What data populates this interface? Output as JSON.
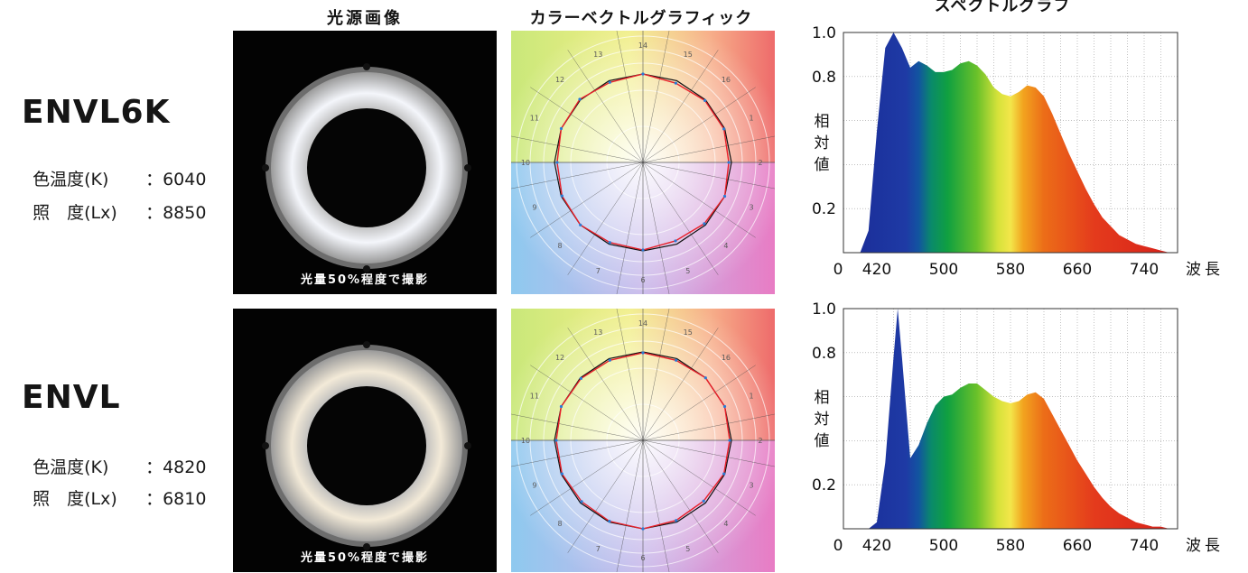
{
  "headers": {
    "col1": "光源画像",
    "col2": "カラーベクトルグラフィック",
    "col3": "スペクトルグラフ"
  },
  "products": [
    {
      "name": "ENVL6K",
      "color_temp_label": "色温度(K)",
      "color_temp_value": "：6040",
      "illuminance_label": "照　度(Lx)",
      "illuminance_value": "：8850",
      "photo_caption": "光量50%程度で撮影",
      "ring_color": "#f4f6fb"
    },
    {
      "name": "ENVL",
      "color_temp_label": "色温度(K)",
      "color_temp_value": "：4820",
      "illuminance_label": "照　度(Lx)",
      "illuminance_value": "：6810",
      "photo_caption": "光量50%程度で撮影",
      "ring_color": "#f3ead8"
    }
  ],
  "colorvector": {
    "sector_numbers": [
      "1",
      "2",
      "3",
      "4",
      "5",
      "6",
      "7",
      "8",
      "9",
      "10",
      "11",
      "12",
      "13",
      "14",
      "15",
      "16"
    ],
    "reference_color": "#111111",
    "measured_color": "#e8202a"
  },
  "chart_data": [
    {
      "type": "area",
      "x_ticks": [
        "0",
        "420",
        "500",
        "580",
        "660",
        "740"
      ],
      "x_unit_label": "波長",
      "y_ticks": [
        "1.0",
        "0.8",
        "0.2"
      ],
      "ylabel": "相対値",
      "xlim": [
        380,
        780
      ],
      "ylim": [
        0,
        1.0
      ],
      "grid": true,
      "x": [
        400,
        410,
        420,
        430,
        440,
        450,
        460,
        470,
        480,
        490,
        500,
        510,
        520,
        530,
        540,
        550,
        560,
        570,
        580,
        590,
        600,
        610,
        620,
        630,
        640,
        650,
        660,
        670,
        680,
        690,
        700,
        710,
        720,
        730,
        740,
        750,
        760,
        770,
        780
      ],
      "y": [
        0.0,
        0.1,
        0.55,
        0.93,
        1.0,
        0.93,
        0.84,
        0.87,
        0.85,
        0.82,
        0.82,
        0.83,
        0.86,
        0.87,
        0.85,
        0.81,
        0.75,
        0.72,
        0.71,
        0.73,
        0.76,
        0.75,
        0.71,
        0.63,
        0.54,
        0.45,
        0.37,
        0.29,
        0.22,
        0.16,
        0.12,
        0.08,
        0.06,
        0.04,
        0.03,
        0.02,
        0.01,
        0.0,
        0.0
      ]
    },
    {
      "type": "area",
      "x_ticks": [
        "0",
        "420",
        "500",
        "580",
        "660",
        "740"
      ],
      "x_unit_label": "波長",
      "y_ticks": [
        "1.0",
        "0.8",
        "0.2"
      ],
      "ylabel": "相対値",
      "xlim": [
        380,
        780
      ],
      "ylim": [
        0,
        1.0
      ],
      "grid": true,
      "x": [
        400,
        410,
        420,
        430,
        440,
        445,
        450,
        460,
        470,
        480,
        490,
        500,
        510,
        520,
        530,
        540,
        550,
        560,
        570,
        580,
        590,
        600,
        610,
        620,
        630,
        640,
        650,
        660,
        670,
        680,
        690,
        700,
        710,
        720,
        730,
        740,
        750,
        760,
        770,
        780
      ],
      "y": [
        0.0,
        0.0,
        0.03,
        0.3,
        0.78,
        1.0,
        0.78,
        0.32,
        0.38,
        0.48,
        0.56,
        0.6,
        0.61,
        0.64,
        0.66,
        0.66,
        0.63,
        0.6,
        0.58,
        0.57,
        0.58,
        0.61,
        0.62,
        0.59,
        0.52,
        0.45,
        0.38,
        0.31,
        0.25,
        0.19,
        0.14,
        0.1,
        0.07,
        0.05,
        0.03,
        0.02,
        0.01,
        0.01,
        0.0,
        0.0
      ]
    }
  ]
}
